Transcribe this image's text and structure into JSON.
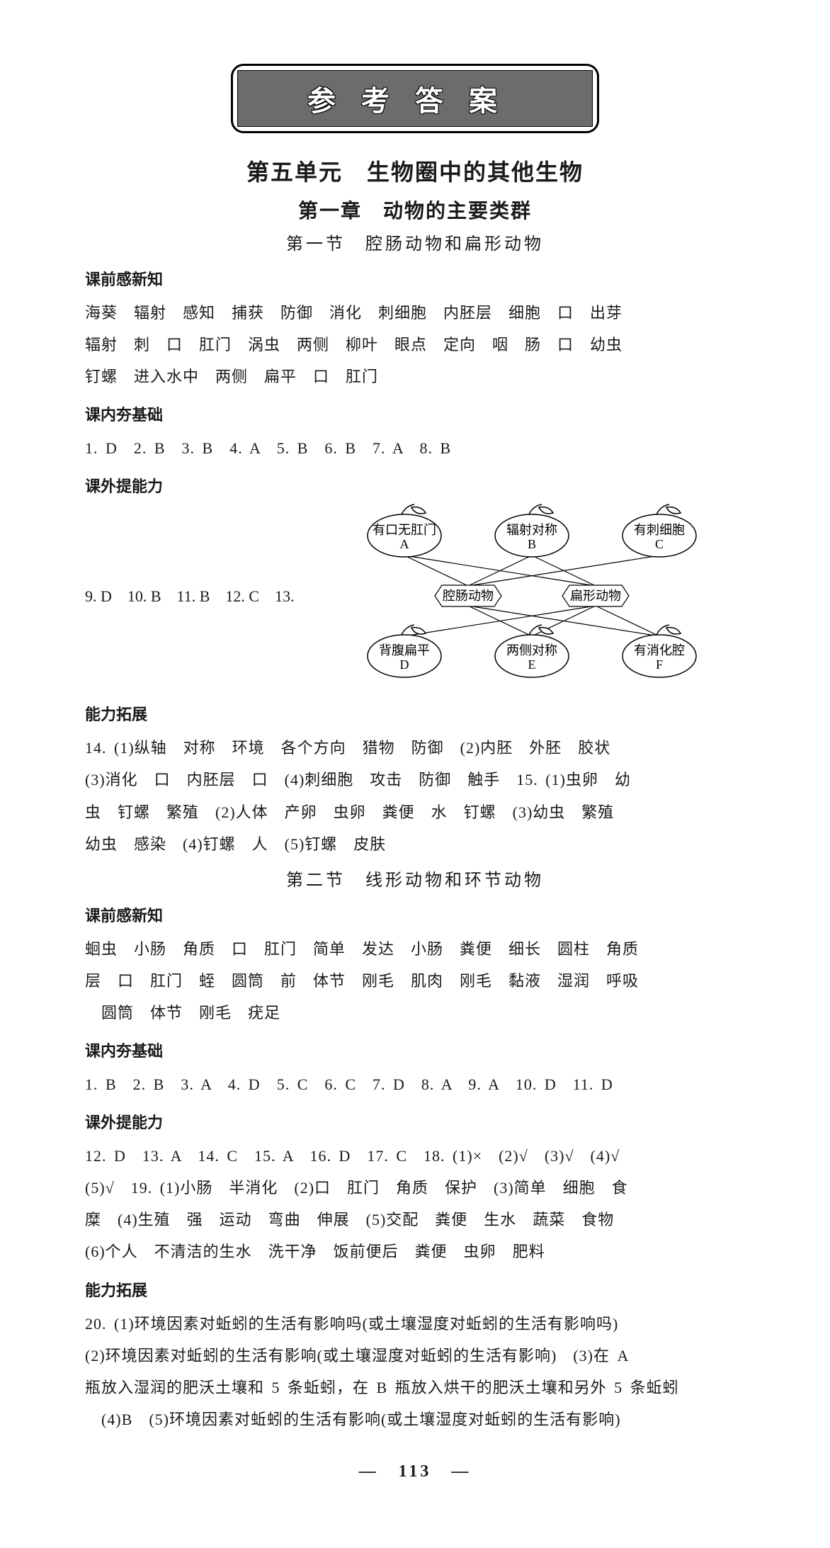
{
  "title_banner": "参考答案",
  "unit_title": "第五单元　生物圈中的其他生物",
  "chapter_title": "第一章　动物的主要类群",
  "s1": {
    "section_title": "第一节　腔肠动物和扁形动物",
    "head1": "课前感新知",
    "pre_lines": [
      "海葵　辐射　感知　捕获　防御　消化　刺细胞　内胚层　细胞　口　出芽",
      "辐射　刺　口　肛门　涡虫　两侧　柳叶　眼点　定向　咽　肠　口　幼虫",
      "钉螺　进入水中　两侧　扁平　口　肛门"
    ],
    "head2": "课内夯基础",
    "base_line": "1. D　2. B　3. B　4. A　5. B　6. B　7. A　8. B",
    "head3": "课外提能力",
    "ext_left": "9. D　10. B　11. B　12. C　13.",
    "diagram": {
      "top": [
        {
          "label": "有口无肛门",
          "sub": "A"
        },
        {
          "label": "辐射对称",
          "sub": "B"
        },
        {
          "label": "有刺细胞",
          "sub": "C"
        }
      ],
      "mid": [
        {
          "label": "腔肠动物"
        },
        {
          "label": "扁形动物"
        }
      ],
      "bot": [
        {
          "label": "背腹扁平",
          "sub": "D"
        },
        {
          "label": "两侧对称",
          "sub": "E"
        },
        {
          "label": "有消化腔",
          "sub": "F"
        }
      ],
      "edges_top": [
        [
          0,
          0
        ],
        [
          0,
          1
        ],
        [
          1,
          0
        ],
        [
          1,
          1
        ],
        [
          2,
          0
        ]
      ],
      "edges_bot": [
        [
          0,
          1
        ],
        [
          1,
          0
        ],
        [
          1,
          1
        ],
        [
          2,
          0
        ],
        [
          2,
          1
        ]
      ]
    },
    "head4": "能力拓展",
    "expand_lines": [
      "14. (1)纵轴　对称　环境　各个方向　猎物　防御　(2)内胚　外胚　胶状",
      "(3)消化　口　内胚层　口　(4)刺细胞　攻击　防御　触手　15. (1)虫卵　幼",
      "虫　钉螺　繁殖　(2)人体　产卵　虫卵　粪便　水　钉螺　(3)幼虫　繁殖",
      "幼虫　感染　(4)钉螺　人　(5)钉螺　皮肤"
    ]
  },
  "s2": {
    "section_title": "第二节　线形动物和环节动物",
    "head1": "课前感新知",
    "pre_lines": [
      "蛔虫　小肠　角质　口　肛门　简单　发达　小肠　粪便　细长　圆柱　角质",
      "层　口　肛门　蛭　圆筒　前　体节　刚毛　肌肉　刚毛　黏液　湿润　呼吸",
      "　圆筒　体节　刚毛　疣足"
    ],
    "head2": "课内夯基础",
    "base_line": "1. B　2. B　3. A　4. D　5. C　6. C　7. D　8. A　9. A　10. D　11. D",
    "head3": "课外提能力",
    "ext_lines": [
      "12. D　13. A　14. C　15. A　16. D　17. C　18. (1)×　(2)√　(3)√　(4)√",
      "(5)√　19. (1)小肠　半消化　(2)口　肛门　角质　保护　(3)简单　细胞　食",
      "糜　(4)生殖　强　运动　弯曲　伸展　(5)交配　粪便　生水　蔬菜　食物",
      "(6)个人　不清洁的生水　洗干净　饭前便后　粪便　虫卵　肥料"
    ],
    "head4": "能力拓展",
    "expand_lines": [
      "20. (1)环境因素对蚯蚓的生活有影响吗(或土壤湿度对蚯蚓的生活有影响吗)",
      "(2)环境因素对蚯蚓的生活有影响(或土壤湿度对蚯蚓的生活有影响)　(3)在 A",
      "瓶放入湿润的肥沃土壤和 5 条蚯蚓，在 B 瓶放入烘干的肥沃土壤和另外 5 条蚯蚓",
      "　(4)B　(5)环境因素对蚯蚓的生活有影响(或土壤湿度对蚯蚓的生活有影响)"
    ]
  },
  "page_number": "—　113　—"
}
